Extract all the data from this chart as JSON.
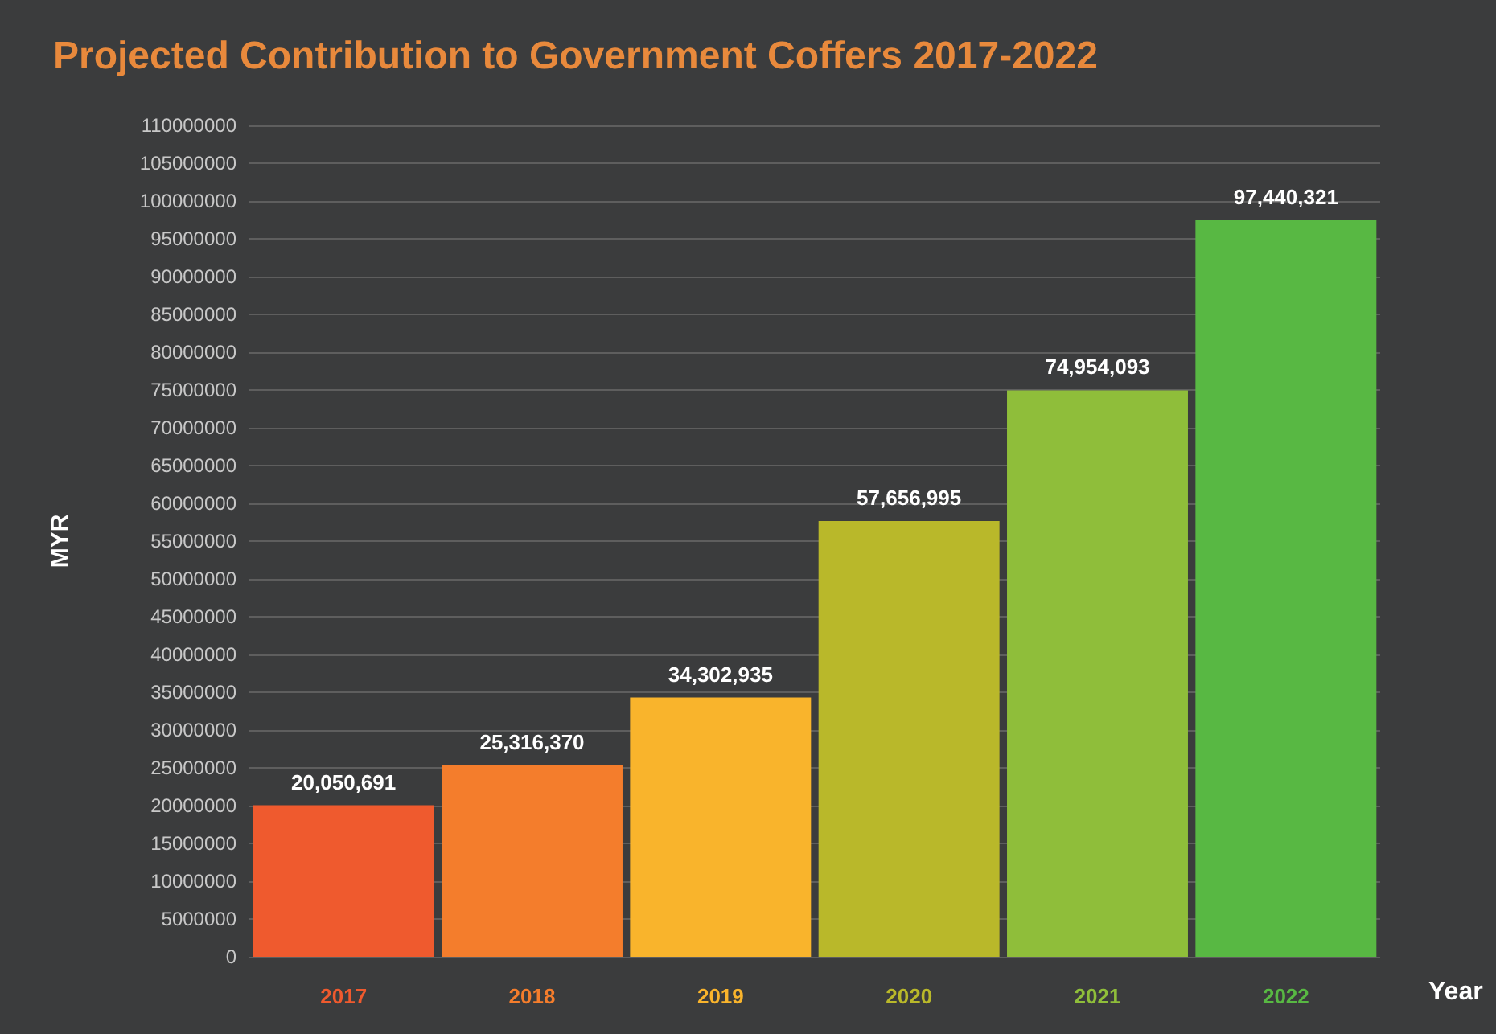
{
  "chart_data": {
    "type": "bar",
    "title": "Projected Contribution to Government Coffers 2017-2022",
    "xlabel": "Year",
    "ylabel": "MYR",
    "categories": [
      "2017",
      "2018",
      "2019",
      "2020",
      "2021",
      "2022"
    ],
    "values": [
      20050691,
      25316370,
      34302935,
      57656995,
      74954093,
      97440321
    ],
    "colors": [
      "#ef5a2e",
      "#f47d2c",
      "#f9b42c",
      "#b9b82a",
      "#8fbe3a",
      "#58b843"
    ],
    "value_labels": [
      "20,050,691",
      "25,316,370",
      "34,302,935",
      "57,656,995",
      "74,954,093",
      "97,440,321"
    ],
    "ylim": [
      0,
      110000000
    ],
    "yticks": [
      0,
      5000000,
      10000000,
      15000000,
      20000000,
      25000000,
      30000000,
      35000000,
      40000000,
      45000000,
      50000000,
      55000000,
      60000000,
      65000000,
      70000000,
      75000000,
      80000000,
      85000000,
      90000000,
      95000000,
      100000000,
      105000000,
      110000000
    ],
    "grid": "y"
  }
}
